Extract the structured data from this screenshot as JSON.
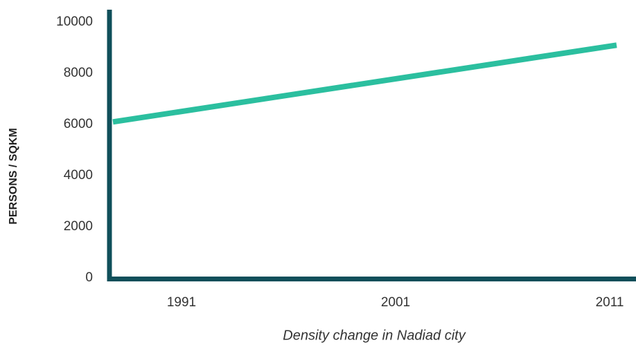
{
  "chart_data": {
    "type": "line",
    "x_label": "Density change in Nadiad city",
    "y_label": "PERSONS / SQKM",
    "categories": [
      "1991",
      "2001",
      "2011"
    ],
    "series": [
      {
        "name": null,
        "color": "#2bbf9f",
        "values": [
          6100,
          7600,
          9100
        ]
      }
    ],
    "ylim": [
      0,
      10000
    ],
    "yticks": [
      0,
      2000,
      4000,
      6000,
      8000,
      10000
    ],
    "axis_color": "#0f4f5a",
    "grid": false
  }
}
